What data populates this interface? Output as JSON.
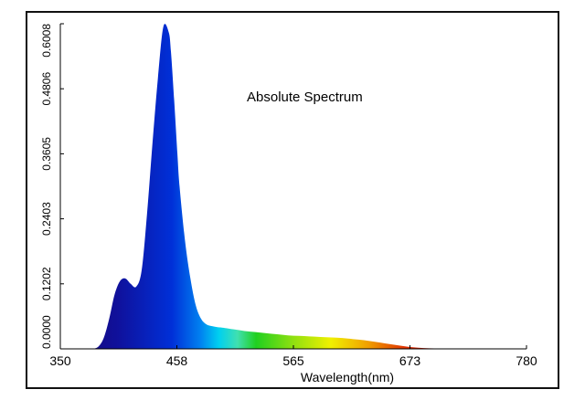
{
  "chart_data": {
    "type": "area",
    "title": "Absolute Spectrum",
    "xlabel": "Wavelength(nm)",
    "ylabel": "",
    "xlim": [
      350,
      780
    ],
    "ylim": [
      0,
      0.6008
    ],
    "x_ticks": [
      "350",
      "458",
      "565",
      "673",
      "780"
    ],
    "y_ticks": [
      "0.0000",
      "0.1202",
      "0.2403",
      "0.3605",
      "0.4806",
      "0.6008"
    ],
    "grid": false,
    "legend": "none",
    "series": [
      {
        "x": [
          380,
          385,
          390,
          395,
          400,
          405,
          410,
          415,
          420,
          425,
          430,
          435,
          440,
          445,
          450,
          452,
          455,
          458,
          460,
          465,
          470,
          475,
          480,
          485,
          490,
          495,
          500,
          510,
          520,
          530,
          540,
          550,
          560,
          570,
          580,
          590,
          600,
          610,
          620,
          630,
          640,
          650,
          660,
          670,
          680,
          690,
          700,
          710
        ],
        "values": [
          0.0,
          0.004,
          0.02,
          0.055,
          0.1,
          0.125,
          0.13,
          0.12,
          0.115,
          0.145,
          0.25,
          0.38,
          0.5,
          0.595,
          0.585,
          0.55,
          0.46,
          0.36,
          0.3,
          0.2,
          0.13,
          0.08,
          0.055,
          0.045,
          0.042,
          0.04,
          0.039,
          0.036,
          0.033,
          0.031,
          0.029,
          0.027,
          0.025,
          0.024,
          0.023,
          0.022,
          0.021,
          0.02,
          0.018,
          0.016,
          0.013,
          0.01,
          0.007,
          0.004,
          0.002,
          0.001,
          0.0005,
          0.0
        ]
      }
    ]
  }
}
